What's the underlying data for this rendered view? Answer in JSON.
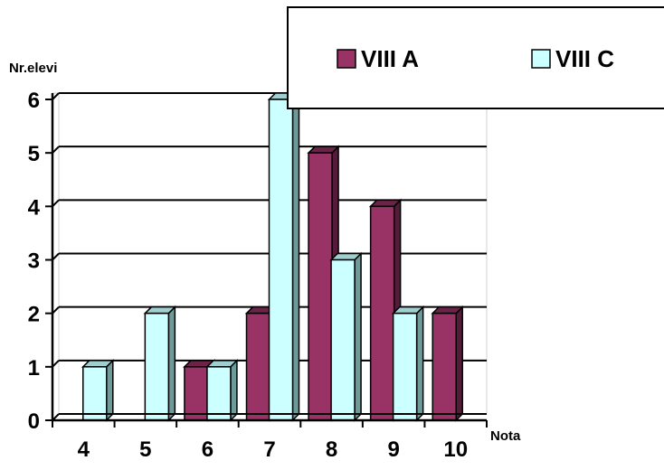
{
  "chart_data": {
    "type": "bar",
    "title": "",
    "xlabel": "Nota",
    "ylabel": "Nr.elevi",
    "categories": [
      "4",
      "5",
      "6",
      "7",
      "8",
      "9",
      "10"
    ],
    "series": [
      {
        "name": "VIII A",
        "color": "#993366",
        "values": [
          0,
          0,
          1,
          2,
          5,
          4,
          2
        ]
      },
      {
        "name": "VIII C",
        "color": "#ccffff",
        "values": [
          1,
          2,
          1,
          6,
          3,
          2,
          0
        ]
      }
    ],
    "ylim": [
      0,
      6
    ],
    "yticks": [
      "0",
      "1",
      "2",
      "3",
      "4",
      "5",
      "6"
    ],
    "grid": true,
    "legend_position": "top-right",
    "style": "3d-bar"
  }
}
